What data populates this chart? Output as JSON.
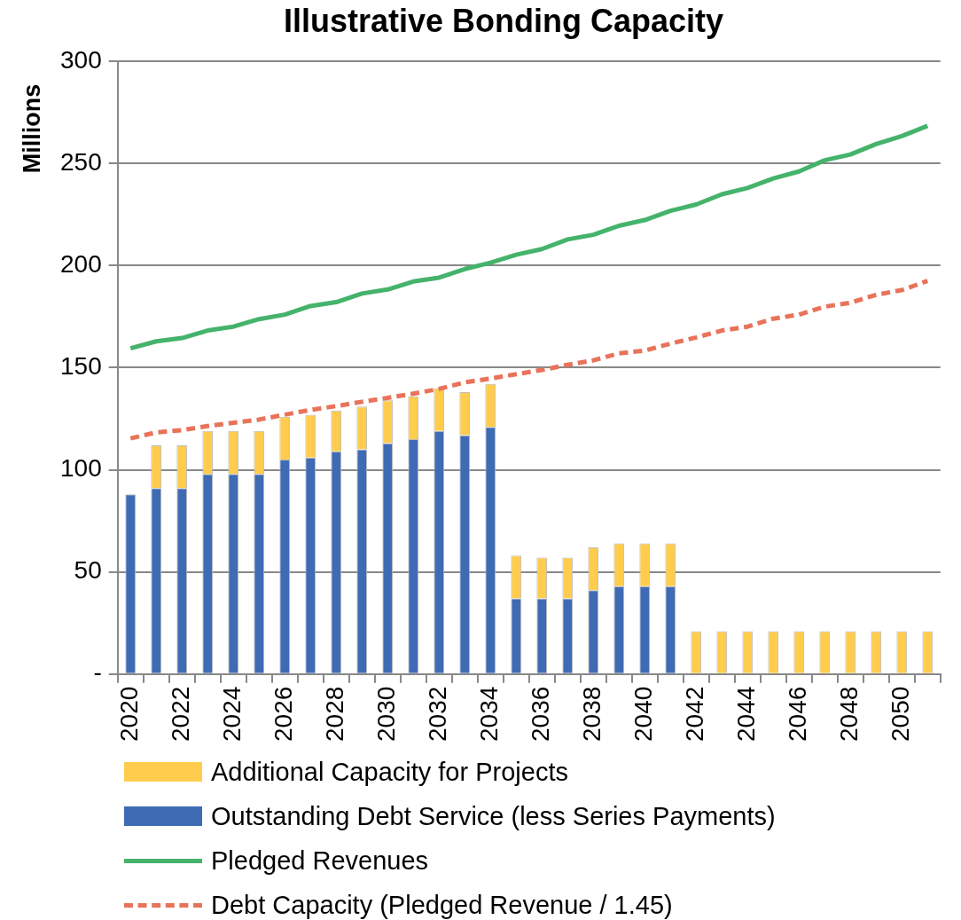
{
  "chart_data": {
    "type": "bar",
    "title": "Illustrative Bonding Capacity",
    "ylabel": "Millions",
    "categories": [
      "2020",
      null,
      "2022",
      null,
      "2024",
      null,
      "2026",
      null,
      "2028",
      null,
      "2030",
      null,
      "2032",
      null,
      "2034",
      null,
      "2036",
      null,
      "2038",
      null,
      "2040",
      null,
      "2042",
      null,
      "2044",
      null,
      "2046",
      null,
      "2048",
      null,
      "2050",
      null
    ],
    "stacked": true,
    "series": [
      {
        "name": "Outstanding Debt Service (less Series Payments)",
        "color": "#3f6bb4",
        "values": [
          88,
          91,
          91,
          98,
          98,
          98,
          105,
          106,
          109,
          110,
          113,
          115,
          119,
          117,
          121,
          37,
          37,
          37,
          41,
          43,
          43,
          43,
          null,
          null,
          null,
          null,
          null,
          null,
          null,
          null,
          null,
          null
        ]
      },
      {
        "name": "Additional Capacity for Projects",
        "color": "#ffcc4d",
        "values": [
          null,
          21,
          21,
          21,
          21,
          21,
          21,
          21,
          20,
          21,
          21,
          21,
          21,
          21,
          21,
          21,
          20,
          20,
          21,
          21,
          21,
          21,
          21,
          21,
          21,
          21,
          21,
          21,
          21,
          21,
          21,
          21
        ]
      },
      {
        "name": "Pledged Revenues",
        "type": "line",
        "color": "#45b36b",
        "line_style": "solid",
        "values": [
          159.5,
          162.9,
          164.5,
          168.2,
          170.1,
          173.8,
          176.0,
          180.2,
          182.1,
          186.3,
          188.3,
          192.2,
          194.1,
          198.3,
          201.4,
          205.3,
          208.1,
          212.8,
          215.1,
          219.5,
          222.3,
          226.8,
          229.9,
          234.9,
          238.0,
          242.7,
          246.1,
          251.6,
          254.4,
          259.5,
          263.4,
          268.4
        ]
      },
      {
        "name": "Debt Capacity (Pledged Revenue / 1.45)",
        "type": "line",
        "color": "#e8735a",
        "line_style": "dashed",
        "values": [
          115.4,
          118.3,
          119.4,
          121.4,
          123.0,
          124.6,
          127.0,
          129.3,
          131.2,
          133.3,
          135.2,
          137.3,
          139.6,
          142.8,
          144.7,
          146.8,
          148.9,
          151.4,
          153.6,
          157.0,
          158.4,
          161.8,
          164.8,
          168.2,
          170.1,
          174.0,
          176.0,
          179.9,
          181.8,
          185.7,
          188.0,
          192.5
        ]
      }
    ],
    "ylim": [
      0,
      300
    ],
    "yticks": [
      {
        "value": 0,
        "label": "-"
      },
      50,
      100,
      150,
      200,
      250,
      300
    ],
    "grid": "y",
    "legend": "bottom",
    "marker": "none"
  }
}
